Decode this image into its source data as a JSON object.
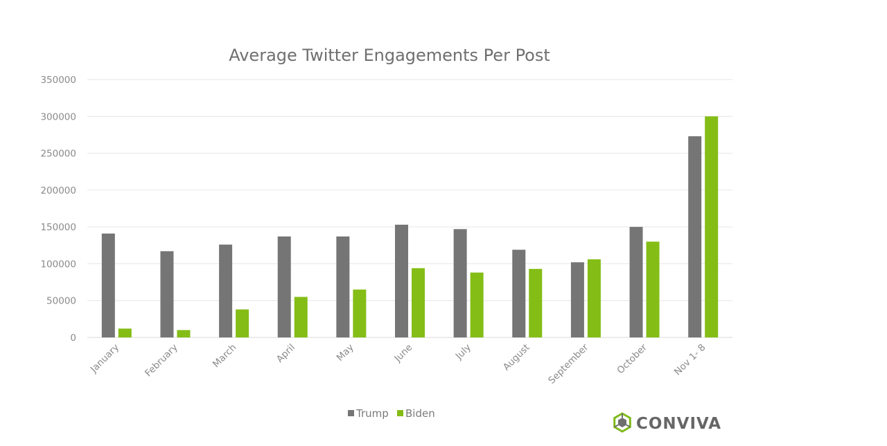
{
  "chart_data": {
    "type": "bar",
    "title": "Average Twitter Engagements Per Post",
    "xlabel": "",
    "ylabel": "",
    "categories": [
      "January",
      "February",
      "March",
      "April",
      "May",
      "June",
      "July",
      "August",
      "September",
      "October",
      "Nov 1- 8"
    ],
    "series": [
      {
        "name": "Trump",
        "color": "#757575",
        "values": [
          141000,
          117000,
          126000,
          137000,
          137000,
          153000,
          147000,
          119000,
          102000,
          150000,
          273000
        ]
      },
      {
        "name": "Biden",
        "color": "#84bd16",
        "values": [
          12000,
          10000,
          38000,
          55000,
          65000,
          94000,
          88000,
          93000,
          106000,
          130000,
          300000
        ]
      }
    ],
    "ylim": [
      0,
      350000
    ],
    "yticks": [
      "0",
      "50000",
      "100000",
      "150000",
      "200000",
      "250000",
      "300000",
      "350000"
    ],
    "grid": true,
    "legend_position": "bottom"
  },
  "colors": {
    "gridline": "#e6e6e6",
    "axis_text": "#8a8a8a",
    "title": "#6f6f6f"
  },
  "logo": {
    "text": "CONVIVA",
    "icon": "conviva-logo-icon"
  }
}
